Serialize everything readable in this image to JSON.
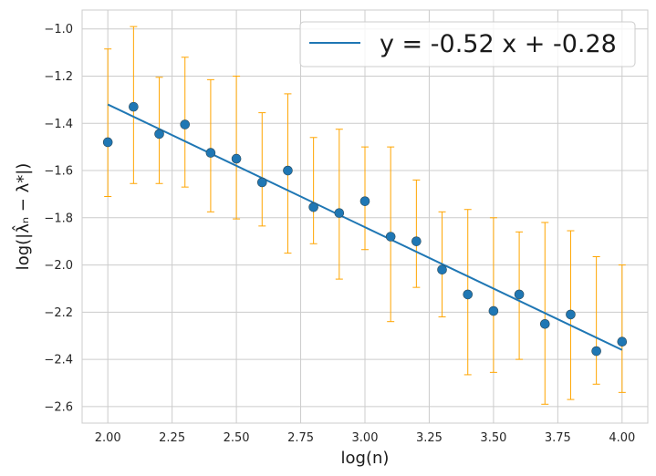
{
  "chart_data": {
    "type": "scatter",
    "xlabel": "log(n)",
    "ylabel": "log(|λ̂ₙ − λ*|)",
    "xlim": [
      1.9,
      4.1
    ],
    "ylim": [
      -2.67,
      -0.92
    ],
    "x_ticks": [
      2.0,
      2.25,
      2.5,
      2.75,
      3.0,
      3.25,
      3.5,
      3.75,
      4.0
    ],
    "x_tick_labels": [
      "2.00",
      "2.25",
      "2.50",
      "2.75",
      "3.00",
      "3.25",
      "3.50",
      "3.75",
      "4.00"
    ],
    "y_ticks": [
      -1.0,
      -1.2,
      -1.4,
      -1.6,
      -1.8,
      -2.0,
      -2.2,
      -2.4,
      -2.6
    ],
    "y_tick_labels": [
      "−1.0",
      "−1.2",
      "−1.4",
      "−1.6",
      "−1.8",
      "−2.0",
      "−2.2",
      "−2.4",
      "−2.6"
    ],
    "grid": true,
    "legend_position": "top-right",
    "points": [
      {
        "x": 2.0,
        "y": -1.48,
        "lo": -1.71,
        "hi": -1.085
      },
      {
        "x": 2.1,
        "y": -1.33,
        "lo": -1.655,
        "hi": -0.99
      },
      {
        "x": 2.2,
        "y": -1.445,
        "lo": -1.655,
        "hi": -1.205
      },
      {
        "x": 2.3,
        "y": -1.405,
        "lo": -1.67,
        "hi": -1.12
      },
      {
        "x": 2.4,
        "y": -1.525,
        "lo": -1.775,
        "hi": -1.215
      },
      {
        "x": 2.5,
        "y": -1.55,
        "lo": -1.805,
        "hi": -1.2
      },
      {
        "x": 2.6,
        "y": -1.65,
        "lo": -1.835,
        "hi": -1.355
      },
      {
        "x": 2.7,
        "y": -1.6,
        "lo": -1.95,
        "hi": -1.275
      },
      {
        "x": 2.8,
        "y": -1.755,
        "lo": -1.91,
        "hi": -1.46
      },
      {
        "x": 2.9,
        "y": -1.78,
        "lo": -2.06,
        "hi": -1.425
      },
      {
        "x": 3.0,
        "y": -1.73,
        "lo": -1.935,
        "hi": -1.5
      },
      {
        "x": 3.1,
        "y": -1.88,
        "lo": -2.24,
        "hi": -1.5
      },
      {
        "x": 3.2,
        "y": -1.9,
        "lo": -2.095,
        "hi": -1.64
      },
      {
        "x": 3.3,
        "y": -2.02,
        "lo": -2.22,
        "hi": -1.775
      },
      {
        "x": 3.4,
        "y": -2.125,
        "lo": -2.465,
        "hi": -1.765
      },
      {
        "x": 3.5,
        "y": -2.195,
        "lo": -2.455,
        "hi": -1.8
      },
      {
        "x": 3.6,
        "y": -2.125,
        "lo": -2.4,
        "hi": -1.86
      },
      {
        "x": 3.7,
        "y": -2.25,
        "lo": -2.59,
        "hi": -1.82
      },
      {
        "x": 3.8,
        "y": -2.21,
        "lo": -2.57,
        "hi": -1.855
      },
      {
        "x": 3.9,
        "y": -2.365,
        "lo": -2.505,
        "hi": -1.965
      },
      {
        "x": 4.0,
        "y": -2.325,
        "lo": -2.54,
        "hi": -2.0
      }
    ],
    "fit": {
      "label": "y = -0.52 x + -0.28",
      "slope": -0.52,
      "intercept": -0.28,
      "x_start": 2.0,
      "x_end": 4.0
    },
    "colors": {
      "points": "#1f77b4",
      "fit_line": "#1f77b4",
      "error_bars": "#FFA500",
      "grid": "#cccccc"
    }
  }
}
